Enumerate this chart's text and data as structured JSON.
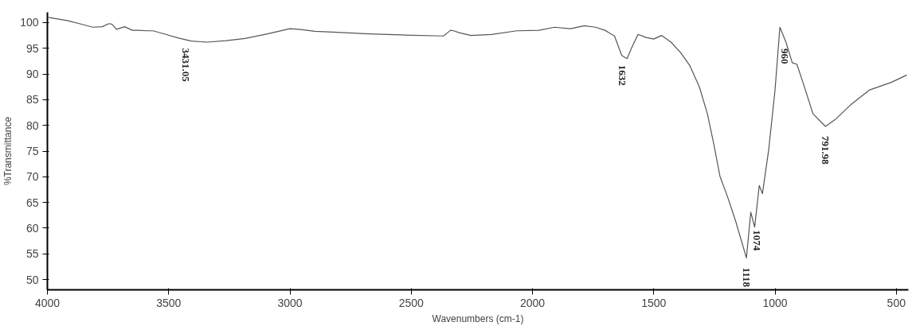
{
  "chart_data": {
    "type": "line",
    "xlabel": "Wavenumbers (cm-1)",
    "ylabel": "%Transmittance",
    "xlim": [
      4000,
      450
    ],
    "ylim": [
      48,
      102
    ],
    "xticks": [
      4000,
      3500,
      3000,
      2500,
      2000,
      1500,
      1000,
      500
    ],
    "yticks": [
      50,
      55,
      60,
      65,
      70,
      75,
      80,
      85,
      90,
      95,
      100
    ],
    "grid": false,
    "series": [
      {
        "color": "#555555",
        "x": [
          3996,
          3918,
          3852,
          3813,
          3774,
          3747,
          3734,
          3715,
          3682,
          3649,
          3623,
          3590,
          3564,
          3512,
          3459,
          3407,
          3342,
          3263,
          3185,
          3093,
          3001,
          2962,
          2897,
          2805,
          2674,
          2543,
          2367,
          2351,
          2338,
          2325,
          2299,
          2253,
          2169,
          2065,
          1974,
          1909,
          1844,
          1786,
          1740,
          1701,
          1662,
          1632,
          1610,
          1591,
          1565,
          1532,
          1500,
          1468,
          1429,
          1390,
          1351,
          1312,
          1279,
          1253,
          1227,
          1195,
          1162,
          1118,
          1100,
          1084,
          1065,
          1052,
          1026,
          1000,
          980,
          955,
          929,
          910,
          883,
          844,
          792,
          753,
          688,
          610,
          519,
          457
        ],
        "values": [
          101.0,
          100.4,
          99.6,
          99.1,
          99.2,
          99.8,
          99.7,
          98.7,
          99.2,
          98.5,
          98.5,
          98.4,
          98.4,
          97.7,
          97.0,
          96.4,
          96.2,
          96.5,
          96.9,
          97.8,
          98.8,
          98.7,
          98.3,
          98.1,
          97.8,
          97.6,
          97.4,
          98.0,
          98.5,
          98.4,
          98.0,
          97.5,
          97.7,
          98.4,
          98.5,
          99.1,
          98.8,
          99.4,
          99.1,
          98.5,
          97.4,
          93.6,
          93.0,
          95.1,
          97.7,
          97.1,
          96.8,
          97.5,
          96.2,
          94.2,
          91.6,
          87.5,
          82.3,
          76.5,
          70.1,
          66.0,
          61.3,
          54.2,
          63.1,
          60.2,
          68.3,
          66.7,
          75.3,
          86.9,
          99.1,
          96.2,
          92.2,
          91.9,
          88.1,
          82.3,
          79.8,
          81.1,
          84.0,
          86.9,
          88.4,
          89.8
        ]
      }
    ],
    "annotations": [
      {
        "text": "3431.05",
        "x": 3431.05,
        "y": 96.9
      },
      {
        "text": "1632",
        "x": 1632,
        "y": 93.6
      },
      {
        "text": "1118",
        "x": 1118,
        "y": 54.2
      },
      {
        "text": "1074",
        "x": 1074,
        "y": 61.5
      },
      {
        "text": "960",
        "x": 960,
        "y": 96.8
      },
      {
        "text": "791.98",
        "x": 791.98,
        "y": 79.8
      }
    ]
  }
}
